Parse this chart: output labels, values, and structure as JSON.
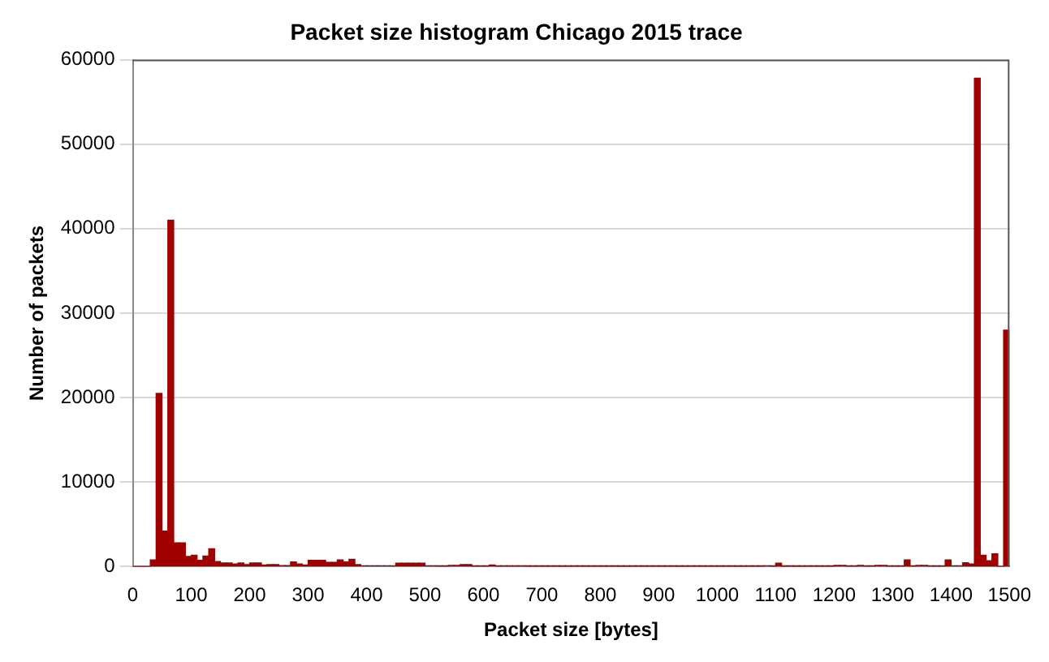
{
  "chart_data": {
    "type": "histogram",
    "title": "Packet size histogram Chicago 2015 trace",
    "xlabel": "Packet size [bytes]",
    "ylabel": "Number of packets",
    "bins": [
      0,
      10,
      20,
      30,
      40,
      50,
      60,
      70,
      80,
      90,
      100,
      110,
      120,
      130,
      140,
      150,
      160,
      170,
      180,
      190,
      200,
      210,
      220,
      230,
      240,
      250,
      260,
      270,
      280,
      290,
      300,
      310,
      320,
      330,
      340,
      350,
      360,
      370,
      380,
      390,
      400,
      410,
      420,
      430,
      440,
      450,
      460,
      470,
      480,
      490,
      500,
      510,
      520,
      530,
      540,
      550,
      560,
      570,
      580,
      590,
      600,
      610,
      620,
      630,
      640,
      650,
      660,
      670,
      680,
      690,
      700,
      710,
      720,
      730,
      740,
      750,
      760,
      770,
      780,
      790,
      800,
      810,
      820,
      830,
      840,
      850,
      860,
      870,
      880,
      890,
      900,
      910,
      920,
      930,
      940,
      950,
      960,
      970,
      980,
      990,
      1000,
      1010,
      1020,
      1030,
      1040,
      1050,
      1060,
      1070,
      1080,
      1090,
      1100,
      1110,
      1120,
      1130,
      1140,
      1150,
      1160,
      1170,
      1180,
      1190,
      1200,
      1210,
      1220,
      1230,
      1240,
      1250,
      1260,
      1270,
      1280,
      1290,
      1300,
      1310,
      1320,
      1330,
      1340,
      1350,
      1360,
      1370,
      1380,
      1390,
      1400,
      1410,
      1420,
      1430,
      1440,
      1450,
      1460,
      1470,
      1480,
      1490,
      1500
    ],
    "values": [
      0,
      0,
      0,
      800,
      20500,
      4200,
      41000,
      2800,
      2800,
      1200,
      1350,
      750,
      1250,
      2100,
      600,
      430,
      430,
      300,
      430,
      250,
      430,
      430,
      190,
      250,
      250,
      120,
      120,
      560,
      300,
      200,
      750,
      750,
      750,
      500,
      500,
      800,
      560,
      870,
      250,
      100,
      100,
      100,
      100,
      100,
      100,
      400,
      400,
      400,
      400,
      400,
      100,
      100,
      50,
      50,
      150,
      150,
      250,
      250,
      50,
      50,
      50,
      200,
      50,
      50,
      50,
      50,
      80,
      30,
      30,
      30,
      30,
      30,
      30,
      30,
      30,
      30,
      30,
      30,
      30,
      30,
      30,
      30,
      30,
      30,
      30,
      30,
      30,
      30,
      30,
      30,
      30,
      30,
      30,
      30,
      30,
      30,
      30,
      30,
      30,
      30,
      30,
      30,
      30,
      30,
      30,
      30,
      30,
      30,
      100,
      30,
      400,
      30,
      30,
      30,
      30,
      30,
      30,
      30,
      30,
      30,
      150,
      150,
      50,
      50,
      150,
      50,
      50,
      150,
      150,
      50,
      50,
      50,
      800,
      50,
      150,
      150,
      50,
      50,
      50,
      800,
      100,
      100,
      450,
      300,
      57800,
      1350,
      700,
      1500,
      0,
      28000
    ],
    "color": "#a00000",
    "xlim": [
      0,
      1500
    ],
    "xticks": [
      0,
      100,
      200,
      300,
      400,
      500,
      600,
      700,
      800,
      900,
      1000,
      1100,
      1200,
      1300,
      1400,
      1500
    ],
    "ylim": [
      0,
      60000
    ],
    "yticks": [
      0,
      10000,
      20000,
      30000,
      40000,
      50000,
      60000
    ],
    "grid": "y"
  }
}
